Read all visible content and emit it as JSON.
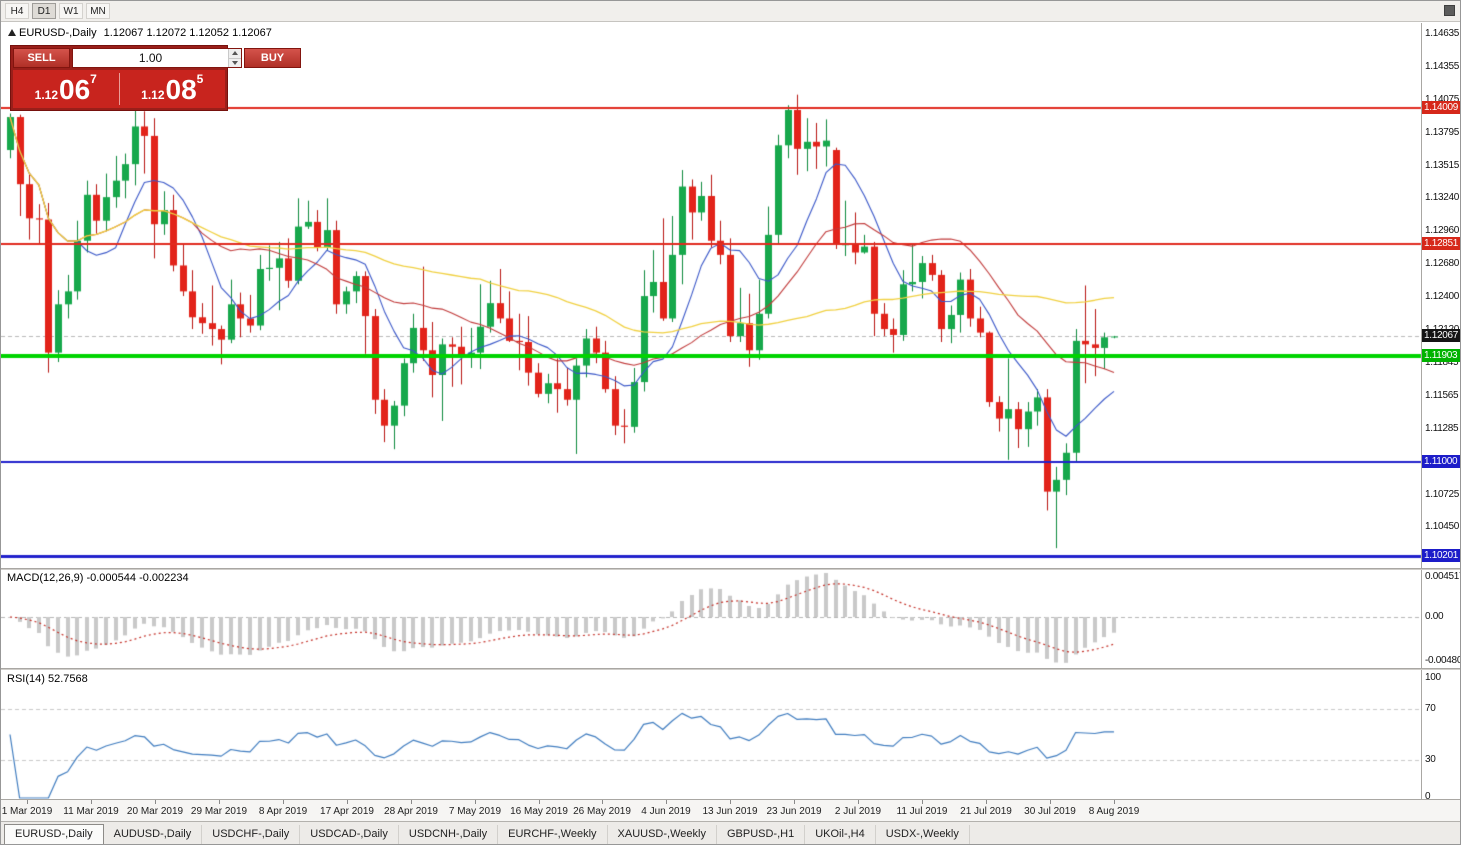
{
  "toolbar": {
    "timeframes": [
      "H4",
      "D1",
      "W1",
      "MN"
    ],
    "active_timeframe": "D1"
  },
  "window": {
    "symbol_title": "EURUSD-,Daily",
    "ohlc_text": "1.12067 1.12072 1.12052 1.12067"
  },
  "trade_panel": {
    "sell_label": "SELL",
    "buy_label": "BUY",
    "volume": "1.00",
    "sell_price": {
      "base": "1.12",
      "big": "06",
      "sup": "7"
    },
    "buy_price": {
      "base": "1.12",
      "big": "08",
      "sup": "5"
    }
  },
  "price_axis": {
    "labels": [
      "1.14635",
      "1.14355",
      "1.14075",
      "1.13795",
      "1.13515",
      "1.13240",
      "1.12960",
      "1.12680",
      "1.12400",
      "1.12120",
      "1.11845",
      "1.11565",
      "1.11285",
      "1.10725",
      "1.10450"
    ],
    "badges": [
      {
        "text": "1.14009",
        "price": 1.14009,
        "color": "#d6281a"
      },
      {
        "text": "1.12851",
        "price": 1.12851,
        "color": "#d6281a"
      },
      {
        "text": "1.12067",
        "price": 1.12067,
        "color": "#151515"
      },
      {
        "text": "1.11903",
        "price": 1.11903,
        "color": "#00b300"
      },
      {
        "text": "1.11000",
        "price": 1.11,
        "color": "#1d1dc9"
      },
      {
        "text": "1.10201",
        "price": 1.10201,
        "color": "#1d1dc9"
      }
    ]
  },
  "levels": [
    {
      "price": 1.14009,
      "color": "#e02a1e",
      "width": 2
    },
    {
      "price": 1.12851,
      "color": "#e02a1e",
      "width": 2
    },
    {
      "price": 1.11903,
      "color": "#00d400",
      "width": 4
    },
    {
      "price": 1.11,
      "color": "#2121cc",
      "width": 2
    },
    {
      "price": 1.10201,
      "color": "#2121cc",
      "width": 3
    }
  ],
  "indicators": {
    "macd": {
      "label": "MACD(12,26,9) -0.000544 -0.002234",
      "axis": [
        "0.004517",
        "0.00",
        "-0.004806"
      ],
      "fast": 12,
      "slow": 26,
      "signal": 9
    },
    "rsi": {
      "label": "RSI(14) 52.7568",
      "axis": [
        "100",
        "70",
        "30",
        "0"
      ],
      "levels": [
        70,
        30
      ],
      "period": 14
    }
  },
  "date_axis": [
    "1 Mar 2019",
    "11 Mar 2019",
    "20 Mar 2019",
    "29 Mar 2019",
    "8 Apr 2019",
    "17 Apr 2019",
    "28 Apr 2019",
    "7 May 2019",
    "16 May 2019",
    "26 May 2019",
    "4 Jun 2019",
    "13 Jun 2019",
    "23 Jun 2019",
    "2 Jul 2019",
    "11 Jul 2019",
    "21 Jul 2019",
    "30 Jul 2019",
    "8 Aug 2019"
  ],
  "tabs": {
    "active": "EURUSD-,Daily",
    "items": [
      "EURUSD-,Daily",
      "AUDUSD-,Daily",
      "USDCHF-,Daily",
      "USDCAD-,Daily",
      "USDCNH-,Daily",
      "EURCHF-,Weekly",
      "XAUUSD-,Weekly",
      "GBPUSD-,H1",
      "UKOil-,H4",
      "USDX-,Weekly"
    ]
  },
  "colors": {
    "bull": "#17a84c",
    "bull_dark": "#0d8a3c",
    "bear": "#e2231a",
    "bear_dark": "#b81510",
    "ma_fast": "#3a57c8",
    "ma_mid": "#c03a3a",
    "ma_slow": "#f0d040",
    "macd_hist": "#c9c9c9",
    "macd_signal": "#c43028",
    "rsi_line": "#3f7cbf",
    "rsi_level": "#c8c8c8",
    "bid_line": "#b8b8b8",
    "zero_line": "#b4b4b4"
  },
  "chart_data": {
    "type": "candlestick",
    "symbol": "EURUSD",
    "period": "Daily",
    "bid": 1.12067,
    "ask": 1.12085,
    "ylim": [
      1.1011,
      1.14703
    ],
    "ma_periods": [
      8,
      20,
      50
    ],
    "ohlc": [
      [
        1.1365,
        1.1396,
        1.1358,
        1.1393
      ],
      [
        1.1393,
        1.1395,
        1.1309,
        1.1336
      ],
      [
        1.1336,
        1.1344,
        1.1289,
        1.1307
      ],
      [
        1.1307,
        1.1319,
        1.1285,
        1.1306
      ],
      [
        1.1306,
        1.132,
        1.1176,
        1.1193
      ],
      [
        1.1193,
        1.1246,
        1.1185,
        1.1234
      ],
      [
        1.1234,
        1.1259,
        1.1222,
        1.1245
      ],
      [
        1.1245,
        1.1305,
        1.1238,
        1.1288
      ],
      [
        1.1288,
        1.1339,
        1.1278,
        1.1327
      ],
      [
        1.1327,
        1.1336,
        1.1294,
        1.1305
      ],
      [
        1.1305,
        1.1345,
        1.1296,
        1.1325
      ],
      [
        1.1325,
        1.136,
        1.1316,
        1.1339
      ],
      [
        1.1339,
        1.1362,
        1.1324,
        1.1353
      ],
      [
        1.1353,
        1.1402,
        1.1335,
        1.1385
      ],
      [
        1.1385,
        1.1398,
        1.1345,
        1.1377
      ],
      [
        1.1377,
        1.1392,
        1.1273,
        1.1302
      ],
      [
        1.1302,
        1.133,
        1.1293,
        1.1314
      ],
      [
        1.1314,
        1.1327,
        1.1262,
        1.1267
      ],
      [
        1.1267,
        1.1286,
        1.1241,
        1.1245
      ],
      [
        1.1245,
        1.1263,
        1.1213,
        1.1223
      ],
      [
        1.1223,
        1.1235,
        1.1209,
        1.1218
      ],
      [
        1.1218,
        1.125,
        1.1199,
        1.1213
      ],
      [
        1.1213,
        1.1216,
        1.1183,
        1.1204
      ],
      [
        1.1204,
        1.1255,
        1.1201,
        1.1234
      ],
      [
        1.1234,
        1.1244,
        1.1206,
        1.1222
      ],
      [
        1.1222,
        1.1242,
        1.121,
        1.1216
      ],
      [
        1.1216,
        1.1276,
        1.1212,
        1.1264
      ],
      [
        1.1264,
        1.1284,
        1.1254,
        1.1265
      ],
      [
        1.1265,
        1.1287,
        1.1229,
        1.1273
      ],
      [
        1.1273,
        1.129,
        1.1248,
        1.1254
      ],
      [
        1.1254,
        1.1324,
        1.1251,
        1.13
      ],
      [
        1.13,
        1.1322,
        1.1298,
        1.1304
      ],
      [
        1.1304,
        1.1314,
        1.1279,
        1.1282
      ],
      [
        1.1282,
        1.1324,
        1.128,
        1.1297
      ],
      [
        1.1297,
        1.1305,
        1.1226,
        1.1234
      ],
      [
        1.1234,
        1.1249,
        1.1226,
        1.1245
      ],
      [
        1.1245,
        1.1262,
        1.1235,
        1.1258
      ],
      [
        1.1258,
        1.1262,
        1.1192,
        1.1224
      ],
      [
        1.1224,
        1.123,
        1.1141,
        1.1153
      ],
      [
        1.1153,
        1.1162,
        1.1117,
        1.1131
      ],
      [
        1.1131,
        1.1152,
        1.1111,
        1.1148
      ],
      [
        1.1148,
        1.1188,
        1.1139,
        1.1184
      ],
      [
        1.1184,
        1.1226,
        1.1176,
        1.1214
      ],
      [
        1.1214,
        1.1266,
        1.1186,
        1.1195
      ],
      [
        1.1195,
        1.1219,
        1.1155,
        1.1174
      ],
      [
        1.1174,
        1.1205,
        1.1135,
        1.12
      ],
      [
        1.12,
        1.1206,
        1.1164,
        1.1198
      ],
      [
        1.1198,
        1.1215,
        1.1166,
        1.119
      ],
      [
        1.119,
        1.1214,
        1.118,
        1.1193
      ],
      [
        1.1193,
        1.1251,
        1.1179,
        1.1215
      ],
      [
        1.1215,
        1.1254,
        1.121,
        1.1235
      ],
      [
        1.1235,
        1.1264,
        1.1218,
        1.1222
      ],
      [
        1.1222,
        1.1245,
        1.1202,
        1.1203
      ],
      [
        1.1203,
        1.1226,
        1.1178,
        1.1202
      ],
      [
        1.1202,
        1.1224,
        1.1165,
        1.1176
      ],
      [
        1.1176,
        1.1184,
        1.1155,
        1.1158
      ],
      [
        1.1158,
        1.1175,
        1.115,
        1.1167
      ],
      [
        1.1167,
        1.1188,
        1.1142,
        1.1162
      ],
      [
        1.1162,
        1.118,
        1.1148,
        1.1153
      ],
      [
        1.1153,
        1.1188,
        1.1107,
        1.1182
      ],
      [
        1.1182,
        1.1213,
        1.1172,
        1.1205
      ],
      [
        1.1205,
        1.1215,
        1.1184,
        1.1193
      ],
      [
        1.1193,
        1.1203,
        1.1159,
        1.1162
      ],
      [
        1.1162,
        1.1173,
        1.1123,
        1.1131
      ],
      [
        1.1131,
        1.1145,
        1.1116,
        1.113
      ],
      [
        1.113,
        1.118,
        1.1125,
        1.1168
      ],
      [
        1.1168,
        1.1263,
        1.116,
        1.1241
      ],
      [
        1.1241,
        1.128,
        1.1227,
        1.1253
      ],
      [
        1.1253,
        1.1307,
        1.122,
        1.1222
      ],
      [
        1.1222,
        1.1309,
        1.1219,
        1.1276
      ],
      [
        1.1276,
        1.1348,
        1.1251,
        1.1334
      ],
      [
        1.1334,
        1.134,
        1.1289,
        1.1312
      ],
      [
        1.1312,
        1.1338,
        1.1305,
        1.1326
      ],
      [
        1.1326,
        1.1344,
        1.1282,
        1.1288
      ],
      [
        1.1288,
        1.1305,
        1.1268,
        1.1276
      ],
      [
        1.1276,
        1.129,
        1.1202,
        1.1207
      ],
      [
        1.1207,
        1.1248,
        1.1202,
        1.1218
      ],
      [
        1.1218,
        1.1243,
        1.1181,
        1.1195
      ],
      [
        1.1195,
        1.1255,
        1.1187,
        1.1226
      ],
      [
        1.1226,
        1.1317,
        1.1222,
        1.1293
      ],
      [
        1.1293,
        1.1378,
        1.1285,
        1.1369
      ],
      [
        1.1369,
        1.1403,
        1.1358,
        1.1399
      ],
      [
        1.1399,
        1.1412,
        1.1344,
        1.1366
      ],
      [
        1.1366,
        1.1392,
        1.1347,
        1.1372
      ],
      [
        1.1372,
        1.1388,
        1.1349,
        1.1368
      ],
      [
        1.1368,
        1.1391,
        1.1351,
        1.1373
      ],
      [
        1.1365,
        1.1367,
        1.1281,
        1.1285
      ],
      [
        1.1285,
        1.1322,
        1.1275,
        1.1285
      ],
      [
        1.1285,
        1.1312,
        1.1268,
        1.1278
      ],
      [
        1.1278,
        1.1293,
        1.1277,
        1.1283
      ],
      [
        1.1283,
        1.1287,
        1.1207,
        1.1226
      ],
      [
        1.1226,
        1.1235,
        1.1207,
        1.1213
      ],
      [
        1.1213,
        1.1222,
        1.1193,
        1.1208
      ],
      [
        1.1208,
        1.1263,
        1.1203,
        1.1251
      ],
      [
        1.1251,
        1.1285,
        1.1245,
        1.1253
      ],
      [
        1.1253,
        1.1275,
        1.1239,
        1.1269
      ],
      [
        1.1269,
        1.1276,
        1.1254,
        1.1259
      ],
      [
        1.1259,
        1.1263,
        1.1202,
        1.1213
      ],
      [
        1.1213,
        1.1233,
        1.1201,
        1.1225
      ],
      [
        1.1225,
        1.1261,
        1.121,
        1.1255
      ],
      [
        1.1255,
        1.1264,
        1.1215,
        1.1222
      ],
      [
        1.1222,
        1.1232,
        1.1206,
        1.121
      ],
      [
        1.121,
        1.1211,
        1.1147,
        1.1151
      ],
      [
        1.1151,
        1.1156,
        1.1126,
        1.1137
      ],
      [
        1.1137,
        1.1188,
        1.1102,
        1.1145
      ],
      [
        1.1145,
        1.1151,
        1.1112,
        1.1128
      ],
      [
        1.1128,
        1.1151,
        1.1113,
        1.1143
      ],
      [
        1.1143,
        1.1162,
        1.1131,
        1.1155
      ],
      [
        1.1155,
        1.1162,
        1.1059,
        1.1075
      ],
      [
        1.1075,
        1.1096,
        1.1027,
        1.1085
      ],
      [
        1.1085,
        1.1116,
        1.1072,
        1.1108
      ],
      [
        1.1108,
        1.1213,
        1.1101,
        1.1203
      ],
      [
        1.1203,
        1.125,
        1.1167,
        1.12
      ],
      [
        1.12,
        1.123,
        1.1173,
        1.1197
      ],
      [
        1.1197,
        1.121,
        1.1179,
        1.1206
      ],
      [
        1.12067,
        1.12072,
        1.12052,
        1.12067
      ]
    ]
  }
}
